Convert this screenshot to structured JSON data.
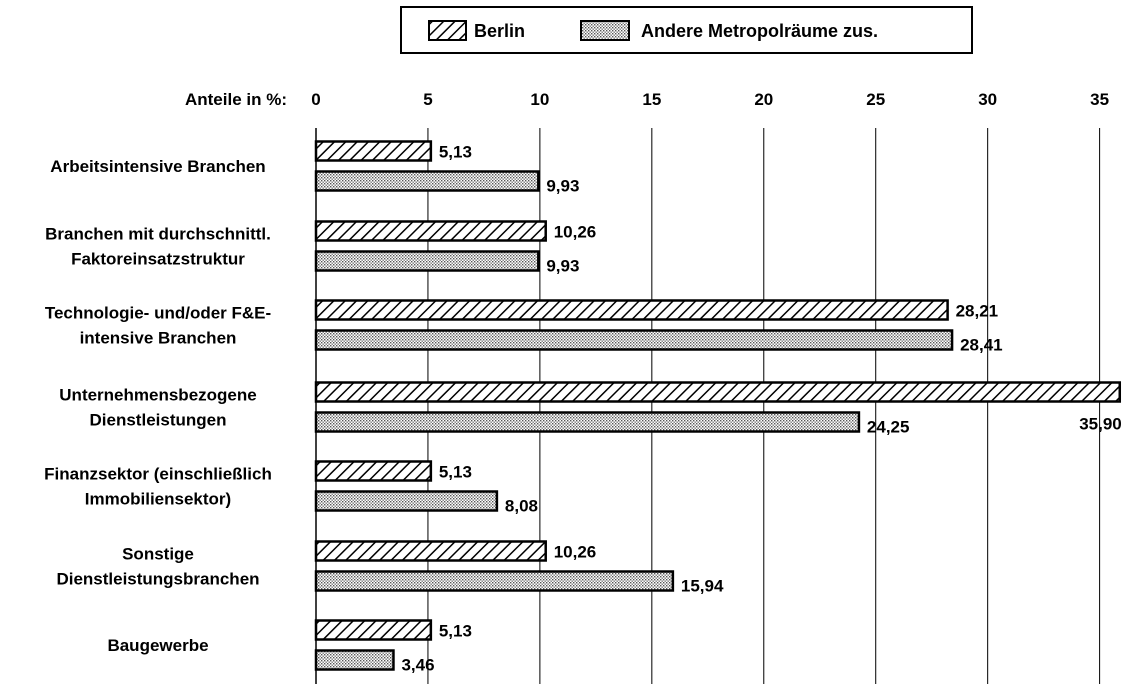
{
  "chart_data": {
    "type": "bar",
    "orientation": "horizontal",
    "axis_title": "Anteile in %:",
    "xlim": [
      0,
      36
    ],
    "ticks": [
      "0",
      "5",
      "10",
      "15",
      "20",
      "25",
      "30",
      "35"
    ],
    "tick_values": [
      0,
      5,
      10,
      15,
      20,
      25,
      30,
      35
    ],
    "grid": true,
    "legend_position": "top-center",
    "categories": [
      [
        "Arbeitsintensive Branchen"
      ],
      [
        "Branchen mit durchschnittl.",
        "Faktoreinsatzstruktur"
      ],
      [
        "Technologie- und/oder F&E-",
        "intensive Branchen"
      ],
      [
        "Unternehmensbezogene",
        "Dienstleistungen"
      ],
      [
        "Finanzsektor (einschließlich",
        "Immobiliensektor)"
      ],
      [
        "Sonstige",
        "Dienstleistungsbranchen"
      ],
      [
        "Baugewerbe"
      ]
    ],
    "series": [
      {
        "name": "Berlin",
        "pattern": "diagonal-hatch",
        "values": [
          5.13,
          10.26,
          28.21,
          35.9,
          5.13,
          10.26,
          5.13
        ],
        "labels": [
          "5,13",
          "10,26",
          "28,21",
          "35,90",
          "5,13",
          "10,26",
          "5,13"
        ]
      },
      {
        "name": "Andere Metropolräume zus.",
        "pattern": "dotted",
        "values": [
          9.93,
          9.93,
          28.41,
          24.25,
          8.08,
          15.94,
          3.46
        ],
        "labels": [
          "9,93",
          "9,93",
          "28,41",
          "24,25",
          "8,08",
          "15,94",
          "3,46"
        ]
      }
    ]
  }
}
